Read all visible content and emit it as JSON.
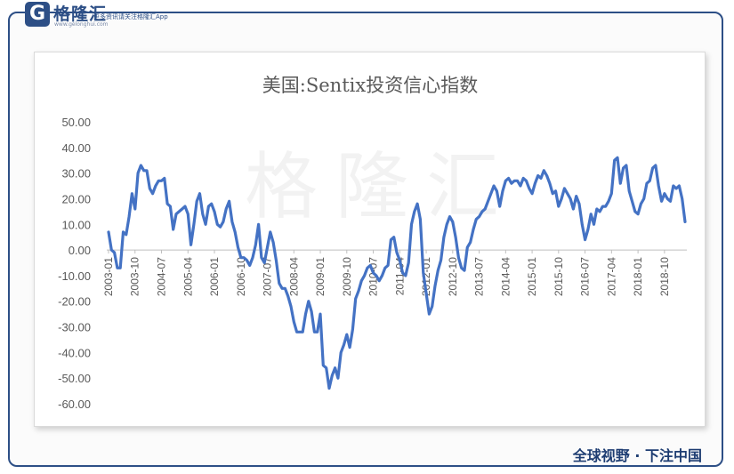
{
  "brand": {
    "logo_letter": "G",
    "name": "格隆汇",
    "site": "www.gelonghui.com",
    "tagline": "更多资讯请关注格隆汇App",
    "watermark": "格隆汇",
    "slogan": "全球视野 · 下注中国",
    "accent_color": "#2d4f86"
  },
  "chart_data": {
    "type": "line",
    "title": "美国:Sentix投资信心指数",
    "xlabel": "",
    "ylabel": "",
    "ylim": [
      -60,
      50
    ],
    "yticks": [
      "50.00",
      "40.00",
      "30.00",
      "20.00",
      "10.00",
      "0.00",
      "-10.00",
      "-20.00",
      "-30.00",
      "-40.00",
      "-50.00",
      "-60.00"
    ],
    "xtick_labels": [
      "2003-01",
      "2003-10",
      "2004-07",
      "2005-04",
      "2006-01",
      "2006-10",
      "2007-07",
      "2008-04",
      "2009-01",
      "2009-10",
      "2010-07",
      "2011-04",
      "2012-01",
      "2012-10",
      "2013-07",
      "2014-04",
      "2015-01",
      "2015-10",
      "2016-07",
      "2017-04",
      "2018-01",
      "2018-10"
    ],
    "grid": false,
    "line_color": "#4472c4",
    "series": [
      {
        "values": [
          7,
          0,
          -1,
          -7,
          -7,
          7,
          6,
          13,
          22,
          16,
          30,
          33,
          31,
          31,
          24,
          22,
          25,
          27,
          27,
          28,
          18,
          17,
          8,
          14,
          15,
          16,
          17,
          14,
          2,
          10,
          19,
          22,
          14,
          10,
          17,
          18,
          15,
          10,
          9,
          11,
          16,
          19,
          11,
          7,
          1,
          -3,
          -3,
          -4,
          -6,
          -3,
          2,
          10,
          -3,
          -5,
          1,
          7,
          3,
          -4,
          -13,
          -15,
          -15,
          -18,
          -22,
          -28,
          -32,
          -32,
          -32,
          -25,
          -20,
          -24,
          -32,
          -32,
          -25,
          -45,
          -46,
          -54,
          -49,
          -46,
          -50,
          -40,
          -37,
          -33,
          -38,
          -31,
          -19,
          -16,
          -12,
          -10,
          -7,
          -6,
          -9,
          -10,
          -12,
          -10,
          -7,
          -6,
          4,
          5,
          -1,
          -4,
          -9,
          -10,
          -5,
          10,
          15,
          18,
          12,
          -9,
          -17,
          -25,
          -22,
          -14,
          -8,
          -4,
          5,
          10,
          13,
          11,
          5,
          -3,
          -7,
          -8,
          1,
          3,
          8,
          12,
          13,
          15,
          16,
          19,
          22,
          25,
          23,
          17,
          23,
          27,
          28,
          26,
          27,
          27,
          25,
          28,
          27,
          24,
          22,
          26,
          29,
          28,
          31,
          29,
          26,
          22,
          23,
          17,
          20,
          24,
          22,
          20,
          16,
          21,
          18,
          10,
          4,
          8,
          14,
          10,
          16,
          15,
          17,
          17,
          19,
          22,
          35,
          36,
          26,
          32,
          33,
          23,
          19,
          15,
          14,
          18,
          20,
          26,
          27,
          32,
          33,
          25,
          19,
          22,
          20,
          19,
          25,
          24,
          25,
          20,
          11
        ]
      }
    ]
  }
}
